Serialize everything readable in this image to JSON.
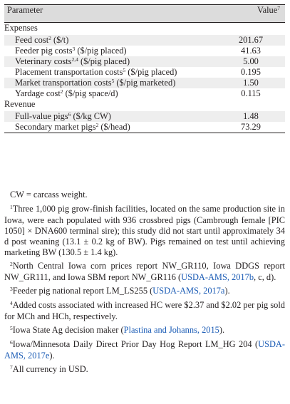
{
  "table": {
    "header": {
      "parameter": "Parameter",
      "value": "Value",
      "value_sup": "7"
    },
    "sections": [
      {
        "title": "Expenses",
        "rows": [
          {
            "label": "Feed cost",
            "sup": "2",
            "unit": " ($/t)",
            "value": "201.67"
          },
          {
            "label": "Feeder pig costs",
            "sup": "3",
            "unit": " ($/pig placed)",
            "value": "41.63"
          },
          {
            "label": "Veterinary costs",
            "sup": "2,4",
            "unit": " ($/pig placed)",
            "value": "5.00"
          },
          {
            "label": "Placement transportation costs",
            "sup": "5",
            "unit": " ($/pig placed)",
            "value": "0.195"
          },
          {
            "label": "Market transportation costs",
            "sup": "5",
            "unit": " ($/pig marketed)",
            "value": "1.50"
          },
          {
            "label": "Yardage cost",
            "sup": "2",
            "unit": " ($/pig space/d)",
            "value": "0.115"
          }
        ]
      },
      {
        "title": "Revenue",
        "rows": [
          {
            "label": "Full-value pigs",
            "sup": "6",
            "unit": " ($/kg CW)",
            "value": "1.48"
          },
          {
            "label": "Secondary market pigs",
            "sup": "2",
            "unit": " ($/head)",
            "value": "73.29"
          }
        ]
      }
    ]
  },
  "abbreviation": "CW = carcass weight.",
  "footnotes": [
    {
      "num": "1",
      "text": "Three 1,000 pig grow-finish facilities, located on the same production site in Iowa, were each populated with 936 crossbred pigs (Cambrough female [PIC 1050] × DNA600 terminal sire); this study did not start until approximately 34 d post weaning (13.1 ± 0.2 kg of BW). Pigs remained on test until achieving marketing BW (130.5 ± 1.4 kg).",
      "link": "",
      "after": ""
    },
    {
      "num": "2",
      "text": "North Central Iowa corn prices report NW_GR110, Iowa DDGS report NW_GR111, and Iowa SBM report NW_GR116 (",
      "link": "USDA-AMS, 2017b",
      "after": ", c, d)."
    },
    {
      "num": "3",
      "text": "Feeder pig national report LM_LS255 (",
      "link": "USDA-AMS, 2017a",
      "after": ")."
    },
    {
      "num": "4",
      "text": "Added costs associated with increased HC were $2.37 and $2.02 per pig sold for MCh and HCh, respectively.",
      "link": "",
      "after": ""
    },
    {
      "num": "5",
      "text": "Iowa State Ag decision maker (",
      "link": "Plastina and Johanns, 2015",
      "after": ")."
    },
    {
      "num": "6",
      "text": "Iowa/Minnesota Daily Direct Prior Day Hog Report LM_HG 204 (",
      "link": "USDA-AMS, 2017e",
      "after": ")."
    },
    {
      "num": "7",
      "text": "All currency in USD.",
      "link": "",
      "after": ""
    }
  ],
  "colors": {
    "header_bg": "#dcdcdc",
    "shade_bg": "#eeeeee",
    "text": "#231f20",
    "link": "#1a5bb5"
  }
}
